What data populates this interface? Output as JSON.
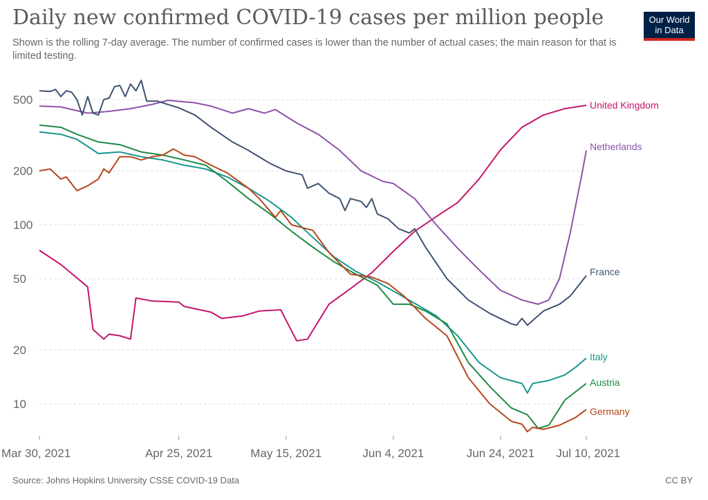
{
  "title": "Daily new confirmed COVID-19 cases per million people",
  "subtitle": "Shown is the rolling 7-day average. The number of confirmed cases is lower than the number of actual cases; the main reason for that is limited testing.",
  "logo": {
    "line1": "Our World",
    "line2": "in Data"
  },
  "source": "Source: Johns Hopkins University CSSE COVID-19 Data",
  "license": "CC BY",
  "colors": {
    "United Kingdom": "#c4146d",
    "Netherlands": "#8b52a8",
    "France": "#3e5270",
    "Italy": "#16968d",
    "Austria": "#1d8a45",
    "Germany": "#b4461a",
    "grid": "#dddddd",
    "axis": "#999999"
  },
  "chart_data": {
    "type": "line",
    "y_scale": "log",
    "ylim": [
      7,
      700
    ],
    "xlim": [
      "2021-03-30",
      "2021-07-10"
    ],
    "grid": "horizontal dashed",
    "y_ticks": [
      {
        "value": 10,
        "label": "10"
      },
      {
        "value": 20,
        "label": "20"
      },
      {
        "value": 50,
        "label": "50"
      },
      {
        "value": 100,
        "label": "100"
      },
      {
        "value": 200,
        "label": "200"
      },
      {
        "value": 500,
        "label": "500"
      }
    ],
    "x_ticks": [
      {
        "date": "2021-03-30",
        "label": "Mar 30, 2021"
      },
      {
        "date": "2021-04-25",
        "label": "Apr 25, 2021"
      },
      {
        "date": "2021-05-15",
        "label": "May 15, 2021"
      },
      {
        "date": "2021-06-04",
        "label": "Jun 4, 2021"
      },
      {
        "date": "2021-06-24",
        "label": "Jun 24, 2021"
      },
      {
        "date": "2021-07-10",
        "label": "Jul 10, 2021"
      }
    ],
    "legend": "inline labels at line ends",
    "series": [
      {
        "name": "United Kingdom",
        "points": [
          [
            "2021-03-30",
            72
          ],
          [
            "2021-04-03",
            60
          ],
          [
            "2021-04-08",
            45
          ],
          [
            "2021-04-09",
            26
          ],
          [
            "2021-04-11",
            23
          ],
          [
            "2021-04-12",
            24.5
          ],
          [
            "2021-04-14",
            24
          ],
          [
            "2021-04-16",
            23
          ],
          [
            "2021-04-17",
            39
          ],
          [
            "2021-04-20",
            37.5
          ],
          [
            "2021-04-25",
            37
          ],
          [
            "2021-04-26",
            35
          ],
          [
            "2021-05-01",
            32.5
          ],
          [
            "2021-05-03",
            30
          ],
          [
            "2021-05-07",
            31
          ],
          [
            "2021-05-10",
            33
          ],
          [
            "2021-05-14",
            33.5
          ],
          [
            "2021-05-17",
            22.5
          ],
          [
            "2021-05-19",
            23
          ],
          [
            "2021-05-23",
            36
          ],
          [
            "2021-05-27",
            44
          ],
          [
            "2021-05-31",
            54
          ],
          [
            "2021-06-04",
            71
          ],
          [
            "2021-06-08",
            92
          ],
          [
            "2021-06-12",
            111
          ],
          [
            "2021-06-16",
            133
          ],
          [
            "2021-06-20",
            180
          ],
          [
            "2021-06-24",
            262
          ],
          [
            "2021-06-28",
            350
          ],
          [
            "2021-07-02",
            410
          ],
          [
            "2021-07-06",
            445
          ],
          [
            "2021-07-10",
            465
          ]
        ]
      },
      {
        "name": "Netherlands",
        "points": [
          [
            "2021-03-30",
            460
          ],
          [
            "2021-04-03",
            455
          ],
          [
            "2021-04-08",
            420
          ],
          [
            "2021-04-12",
            430
          ],
          [
            "2021-04-16",
            445
          ],
          [
            "2021-04-20",
            470
          ],
          [
            "2021-04-23",
            495
          ],
          [
            "2021-04-28",
            480
          ],
          [
            "2021-05-01",
            460
          ],
          [
            "2021-05-03",
            440
          ],
          [
            "2021-05-05",
            420
          ],
          [
            "2021-05-08",
            445
          ],
          [
            "2021-05-11",
            420
          ],
          [
            "2021-05-13",
            440
          ],
          [
            "2021-05-17",
            370
          ],
          [
            "2021-05-21",
            320
          ],
          [
            "2021-05-25",
            260
          ],
          [
            "2021-05-29",
            200
          ],
          [
            "2021-06-02",
            175
          ],
          [
            "2021-06-04",
            170
          ],
          [
            "2021-06-08",
            140
          ],
          [
            "2021-06-12",
            100
          ],
          [
            "2021-06-16",
            74
          ],
          [
            "2021-06-20",
            56
          ],
          [
            "2021-06-24",
            43
          ],
          [
            "2021-06-28",
            38
          ],
          [
            "2021-07-01",
            36
          ],
          [
            "2021-07-03",
            38
          ],
          [
            "2021-07-05",
            50
          ],
          [
            "2021-07-07",
            90
          ],
          [
            "2021-07-09",
            180
          ],
          [
            "2021-07-10",
            260
          ]
        ]
      },
      {
        "name": "France",
        "points": [
          [
            "2021-03-30",
            560
          ],
          [
            "2021-04-01",
            555
          ],
          [
            "2021-04-02",
            570
          ],
          [
            "2021-04-03",
            520
          ],
          [
            "2021-04-04",
            560
          ],
          [
            "2021-04-05",
            550
          ],
          [
            "2021-04-06",
            500
          ],
          [
            "2021-04-07",
            410
          ],
          [
            "2021-04-08",
            520
          ],
          [
            "2021-04-09",
            420
          ],
          [
            "2021-04-10",
            410
          ],
          [
            "2021-04-11",
            500
          ],
          [
            "2021-04-12",
            510
          ],
          [
            "2021-04-13",
            590
          ],
          [
            "2021-04-14",
            600
          ],
          [
            "2021-04-15",
            520
          ],
          [
            "2021-04-16",
            610
          ],
          [
            "2021-04-17",
            560
          ],
          [
            "2021-04-18",
            640
          ],
          [
            "2021-04-19",
            490
          ],
          [
            "2021-04-21",
            490
          ],
          [
            "2021-04-25",
            450
          ],
          [
            "2021-04-28",
            410
          ],
          [
            "2021-05-01",
            350
          ],
          [
            "2021-05-05",
            290
          ],
          [
            "2021-05-08",
            260
          ],
          [
            "2021-05-12",
            220
          ],
          [
            "2021-05-15",
            200
          ],
          [
            "2021-05-18",
            190
          ],
          [
            "2021-05-19",
            160
          ],
          [
            "2021-05-21",
            170
          ],
          [
            "2021-05-23",
            150
          ],
          [
            "2021-05-25",
            140
          ],
          [
            "2021-05-26",
            120
          ],
          [
            "2021-05-27",
            140
          ],
          [
            "2021-05-29",
            135
          ],
          [
            "2021-05-30",
            125
          ],
          [
            "2021-05-31",
            140
          ],
          [
            "2021-06-01",
            115
          ],
          [
            "2021-06-03",
            108
          ],
          [
            "2021-06-05",
            95
          ],
          [
            "2021-06-07",
            90
          ],
          [
            "2021-06-08",
            95
          ],
          [
            "2021-06-10",
            75
          ],
          [
            "2021-06-14",
            50
          ],
          [
            "2021-06-18",
            38
          ],
          [
            "2021-06-22",
            32
          ],
          [
            "2021-06-26",
            28
          ],
          [
            "2021-06-27",
            27.5
          ],
          [
            "2021-06-28",
            30
          ],
          [
            "2021-06-29",
            27.5
          ],
          [
            "2021-07-02",
            33
          ],
          [
            "2021-07-05",
            36
          ],
          [
            "2021-07-07",
            40
          ],
          [
            "2021-07-10",
            52
          ]
        ]
      },
      {
        "name": "Italy",
        "points": [
          [
            "2021-03-30",
            330
          ],
          [
            "2021-04-03",
            320
          ],
          [
            "2021-04-06",
            300
          ],
          [
            "2021-04-10",
            250
          ],
          [
            "2021-04-14",
            255
          ],
          [
            "2021-04-18",
            240
          ],
          [
            "2021-04-22",
            230
          ],
          [
            "2021-04-26",
            215
          ],
          [
            "2021-04-30",
            205
          ],
          [
            "2021-05-04",
            185
          ],
          [
            "2021-05-08",
            160
          ],
          [
            "2021-05-12",
            135
          ],
          [
            "2021-05-16",
            110
          ],
          [
            "2021-05-20",
            85
          ],
          [
            "2021-05-24",
            66
          ],
          [
            "2021-05-28",
            55
          ],
          [
            "2021-06-01",
            48
          ],
          [
            "2021-06-05",
            41
          ],
          [
            "2021-06-09",
            35
          ],
          [
            "2021-06-12",
            31
          ],
          [
            "2021-06-16",
            24
          ],
          [
            "2021-06-20",
            17
          ],
          [
            "2021-06-24",
            14
          ],
          [
            "2021-06-28",
            13
          ],
          [
            "2021-06-29",
            11.5
          ],
          [
            "2021-06-30",
            13
          ],
          [
            "2021-07-03",
            13.5
          ],
          [
            "2021-07-06",
            14.5
          ],
          [
            "2021-07-08",
            16
          ],
          [
            "2021-07-10",
            18
          ]
        ]
      },
      {
        "name": "Austria",
        "points": [
          [
            "2021-03-30",
            360
          ],
          [
            "2021-04-03",
            350
          ],
          [
            "2021-04-06",
            320
          ],
          [
            "2021-04-10",
            290
          ],
          [
            "2021-04-14",
            280
          ],
          [
            "2021-04-18",
            255
          ],
          [
            "2021-04-22",
            245
          ],
          [
            "2021-04-26",
            230
          ],
          [
            "2021-04-30",
            215
          ],
          [
            "2021-05-04",
            175
          ],
          [
            "2021-05-08",
            140
          ],
          [
            "2021-05-12",
            115
          ],
          [
            "2021-05-16",
            92
          ],
          [
            "2021-05-20",
            75
          ],
          [
            "2021-05-24",
            62
          ],
          [
            "2021-05-28",
            53
          ],
          [
            "2021-06-01",
            46
          ],
          [
            "2021-06-04",
            36
          ],
          [
            "2021-06-07",
            36
          ],
          [
            "2021-06-10",
            33
          ],
          [
            "2021-06-14",
            28
          ],
          [
            "2021-06-18",
            17
          ],
          [
            "2021-06-22",
            12.5
          ],
          [
            "2021-06-26",
            9.5
          ],
          [
            "2021-06-29",
            8.7
          ],
          [
            "2021-07-01",
            7.3
          ],
          [
            "2021-07-03",
            7.6
          ],
          [
            "2021-07-06",
            10.5
          ],
          [
            "2021-07-10",
            13
          ]
        ]
      },
      {
        "name": "Germany",
        "points": [
          [
            "2021-03-30",
            200
          ],
          [
            "2021-04-01",
            205
          ],
          [
            "2021-04-03",
            180
          ],
          [
            "2021-04-04",
            185
          ],
          [
            "2021-04-06",
            155
          ],
          [
            "2021-04-08",
            165
          ],
          [
            "2021-04-10",
            180
          ],
          [
            "2021-04-11",
            205
          ],
          [
            "2021-04-12",
            195
          ],
          [
            "2021-04-14",
            240
          ],
          [
            "2021-04-16",
            240
          ],
          [
            "2021-04-18",
            230
          ],
          [
            "2021-04-20",
            240
          ],
          [
            "2021-04-22",
            245
          ],
          [
            "2021-04-24",
            265
          ],
          [
            "2021-04-26",
            245
          ],
          [
            "2021-04-28",
            240
          ],
          [
            "2021-05-01",
            215
          ],
          [
            "2021-05-04",
            195
          ],
          [
            "2021-05-08",
            160
          ],
          [
            "2021-05-10",
            140
          ],
          [
            "2021-05-13",
            110
          ],
          [
            "2021-05-14",
            120
          ],
          [
            "2021-05-16",
            100
          ],
          [
            "2021-05-20",
            93
          ],
          [
            "2021-05-23",
            70
          ],
          [
            "2021-05-27",
            53
          ],
          [
            "2021-05-31",
            51
          ],
          [
            "2021-06-03",
            47
          ],
          [
            "2021-06-06",
            40
          ],
          [
            "2021-06-10",
            30
          ],
          [
            "2021-06-14",
            24
          ],
          [
            "2021-06-18",
            14
          ],
          [
            "2021-06-22",
            10
          ],
          [
            "2021-06-26",
            8
          ],
          [
            "2021-06-28",
            7.7
          ],
          [
            "2021-06-29",
            7.0
          ],
          [
            "2021-06-30",
            7.4
          ],
          [
            "2021-07-02",
            7.2
          ],
          [
            "2021-07-05",
            7.6
          ],
          [
            "2021-07-08",
            8.4
          ],
          [
            "2021-07-10",
            9.3
          ]
        ]
      }
    ]
  }
}
